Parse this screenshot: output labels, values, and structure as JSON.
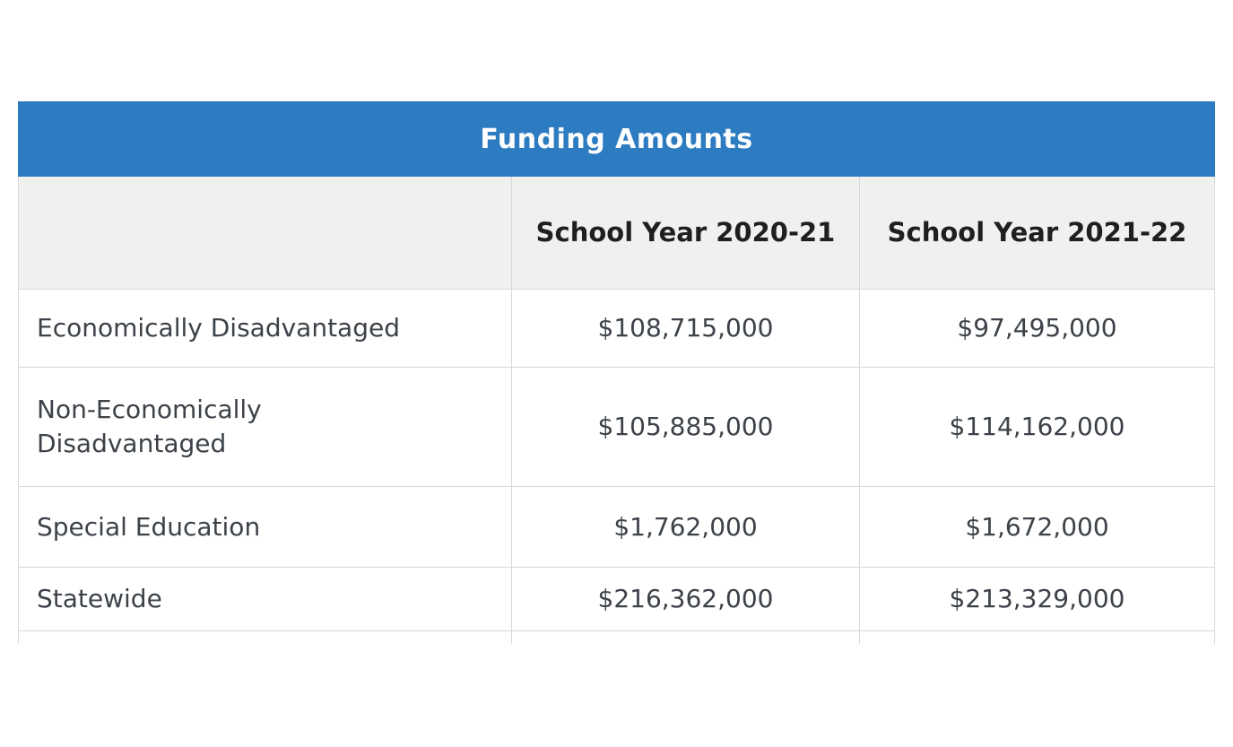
{
  "page": {
    "background_color": "#ffffff"
  },
  "table": {
    "title": "Funding Amounts",
    "title_bg_color": "#2d7cc1",
    "title_text_color": "#ffffff",
    "header_bg_color": "#f0f0ee",
    "border_color": "#d8d8d8",
    "body_text_color": "#3c4248",
    "columns": [
      "",
      "School Year 2020-21",
      "School Year 2021-22"
    ],
    "rows": [
      {
        "label": "Economically Disadvantaged",
        "values": [
          "$108,715,000",
          "$97,495,000"
        ]
      },
      {
        "label": "Non-Economically Disadvantaged",
        "values": [
          "$105,885,000",
          "$114,162,000"
        ]
      },
      {
        "label": "Special Education",
        "values": [
          "$1,762,000",
          "$1,672,000"
        ]
      },
      {
        "label": "Statewide",
        "values": [
          "$216,362,000",
          "$213,329,000"
        ]
      }
    ]
  },
  "chart_data": {
    "type": "table",
    "title": "Funding Amounts",
    "columns": [
      "",
      "School Year 2020-21",
      "School Year 2021-22"
    ],
    "rows": [
      [
        "Economically Disadvantaged",
        "$108,715,000",
        "$97,495,000"
      ],
      [
        "Non-Economically Disadvantaged",
        "$105,885,000",
        "$114,162,000"
      ],
      [
        "Special Education",
        "$1,762,000",
        "$1,672,000"
      ],
      [
        "Statewide",
        "$216,362,000",
        "$213,329,000"
      ]
    ],
    "series": [
      {
        "name": "School Year 2020-21",
        "values": [
          108715000,
          105885000,
          1762000,
          216362000
        ]
      },
      {
        "name": "School Year 2021-22",
        "values": [
          97495000,
          114162000,
          1672000,
          213329000
        ]
      }
    ],
    "categories": [
      "Economically Disadvantaged",
      "Non-Economically Disadvantaged",
      "Special Education",
      "Statewide"
    ],
    "layout": {
      "title_position": "top-center",
      "values_format": "USD"
    }
  }
}
